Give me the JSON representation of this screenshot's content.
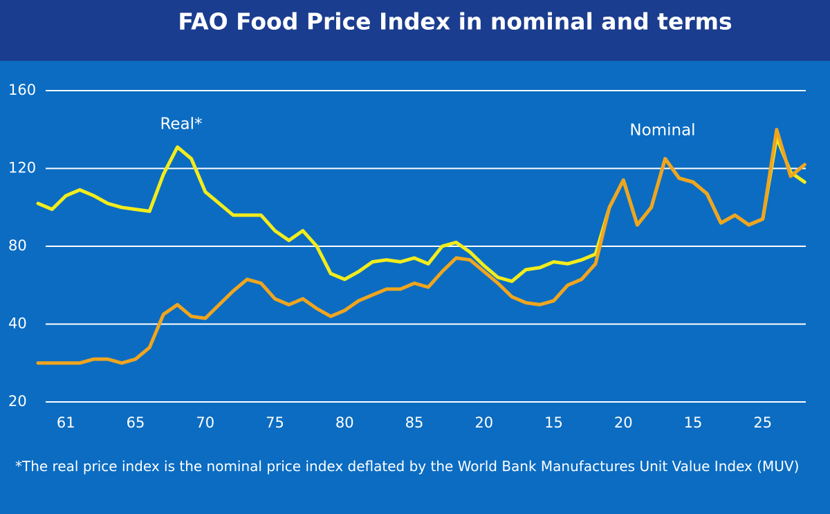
{
  "chart_data": {
    "type": "line",
    "title": "FAO Food Price Index in nominal and terms",
    "footnote": "*The real price index is the nominal price index deflated by the World Bank Manufactures Unit Value Index (MUV)",
    "annotations": [
      "Real*",
      "Nominal"
    ],
    "categories": [
      null,
      null,
      "61",
      null,
      null,
      null,
      null,
      "65",
      null,
      null,
      null,
      null,
      "70",
      null,
      null,
      null,
      null,
      "75",
      null,
      null,
      null,
      null,
      "80",
      null,
      null,
      null,
      null,
      "85",
      null,
      null,
      null,
      null,
      "20",
      null,
      null,
      null,
      null,
      "15",
      null,
      null,
      null,
      null,
      "20",
      null,
      null,
      null,
      null,
      "15",
      null,
      null,
      null,
      null,
      "25",
      null,
      null,
      null
    ],
    "series": [
      {
        "name": "Real*",
        "color": "#f2ec1c",
        "values": [
          102,
          99,
          106,
          109,
          106,
          102,
          100,
          99,
          98,
          117,
          131,
          125,
          108,
          102,
          96,
          96,
          96,
          88,
          83,
          88,
          80,
          66,
          63,
          67,
          72,
          73,
          72,
          74,
          71,
          80,
          82,
          77,
          70,
          64,
          62,
          68,
          69,
          72,
          71,
          73,
          76,
          100,
          114,
          91,
          100,
          125,
          115,
          113,
          107,
          92,
          96,
          91,
          94,
          136,
          118,
          113
        ]
      },
      {
        "name": "Nominal",
        "color": "#f0a51e",
        "values": [
          30,
          30,
          30,
          30,
          31,
          31,
          30,
          31,
          34,
          45,
          50,
          44,
          43,
          50,
          57,
          63,
          61,
          53,
          50,
          53,
          48,
          44,
          47,
          52,
          55,
          58,
          58,
          61,
          59,
          67,
          74,
          73,
          67,
          61,
          54,
          51,
          50,
          52,
          60,
          63,
          71,
          100,
          114,
          91,
          100,
          125,
          115,
          113,
          107,
          92,
          96,
          91,
          94,
          140,
          116,
          122
        ]
      }
    ],
    "ylim": [
      20,
      160
    ],
    "yticks": [
      20,
      40,
      80,
      120,
      160
    ],
    "grid": true
  }
}
